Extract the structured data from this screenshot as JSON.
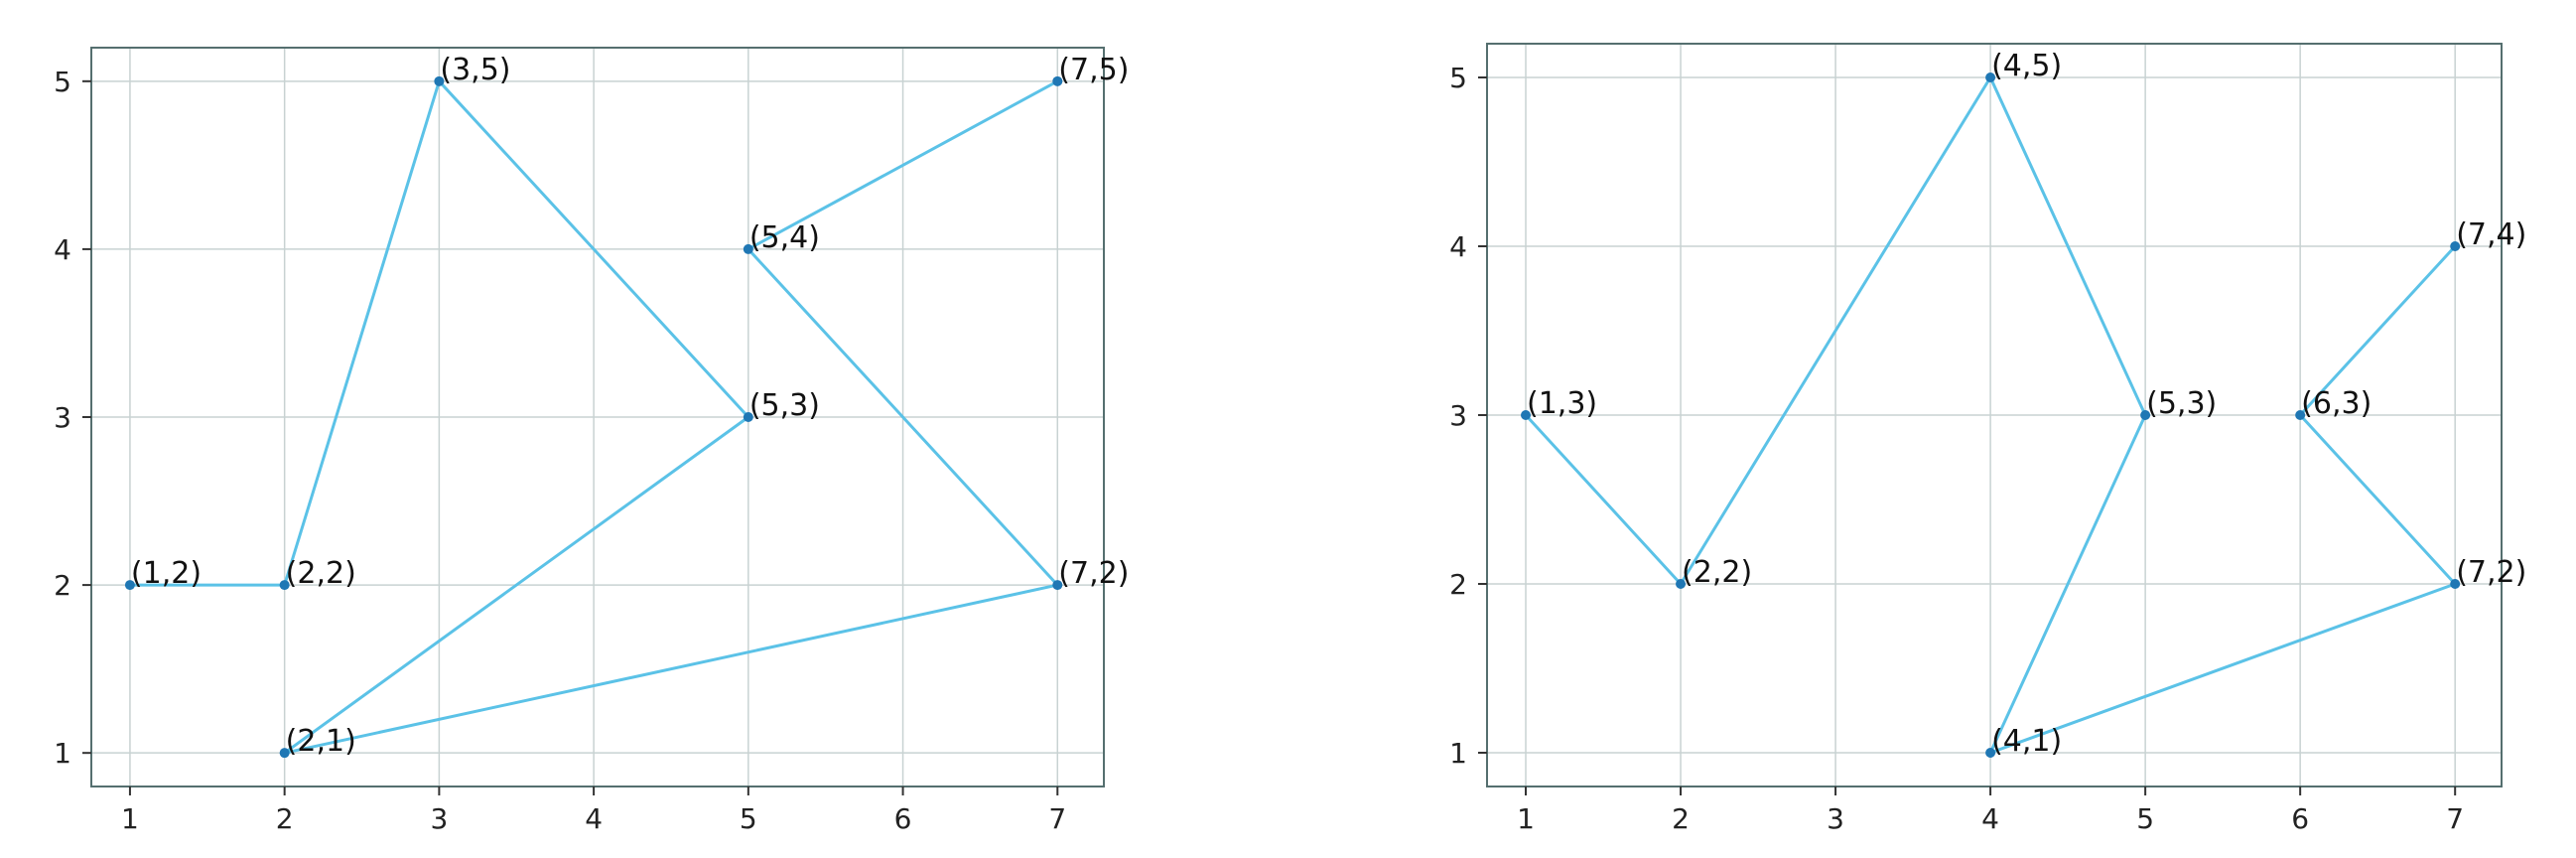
{
  "colors": {
    "line": "#5bc2e7",
    "marker": "#1f77b4",
    "grid": "#c8d2d2",
    "frame": "#556f6f"
  },
  "chart_data": [
    {
      "type": "line",
      "title": "",
      "xlabel": "",
      "ylabel": "",
      "xlim": [
        0.75,
        7.3
      ],
      "ylim": [
        0.8,
        5.2
      ],
      "xticks": [
        1,
        2,
        3,
        4,
        5,
        6,
        7
      ],
      "yticks": [
        1,
        2,
        3,
        4,
        5
      ],
      "grid": true,
      "series": [
        {
          "x": [
            1,
            2,
            3,
            5,
            2,
            7,
            5,
            7
          ],
          "y": [
            2,
            2,
            5,
            3,
            1,
            2,
            4,
            5
          ],
          "labels": [
            "(1,2)",
            "(2,2)",
            "(3,5)",
            "(5,3)",
            "(2,1)",
            "(7,2)",
            "(5,4)",
            "(7,5)"
          ]
        }
      ]
    },
    {
      "type": "line",
      "title": "",
      "xlabel": "",
      "ylabel": "",
      "xlim": [
        0.75,
        7.3
      ],
      "ylim": [
        0.8,
        5.2
      ],
      "xticks": [
        1,
        2,
        3,
        4,
        5,
        6,
        7
      ],
      "yticks": [
        1,
        2,
        3,
        4,
        5
      ],
      "grid": true,
      "series": [
        {
          "x": [
            1,
            2,
            4,
            5,
            4,
            7,
            6,
            7
          ],
          "y": [
            3,
            2,
            5,
            3,
            1,
            2,
            3,
            4
          ],
          "labels": [
            "(1,3)",
            "(2,2)",
            "(4,5)",
            "(5,3)",
            "(4,1)",
            "(7,2)",
            "(6,3)",
            "(7,4)"
          ]
        }
      ]
    }
  ]
}
